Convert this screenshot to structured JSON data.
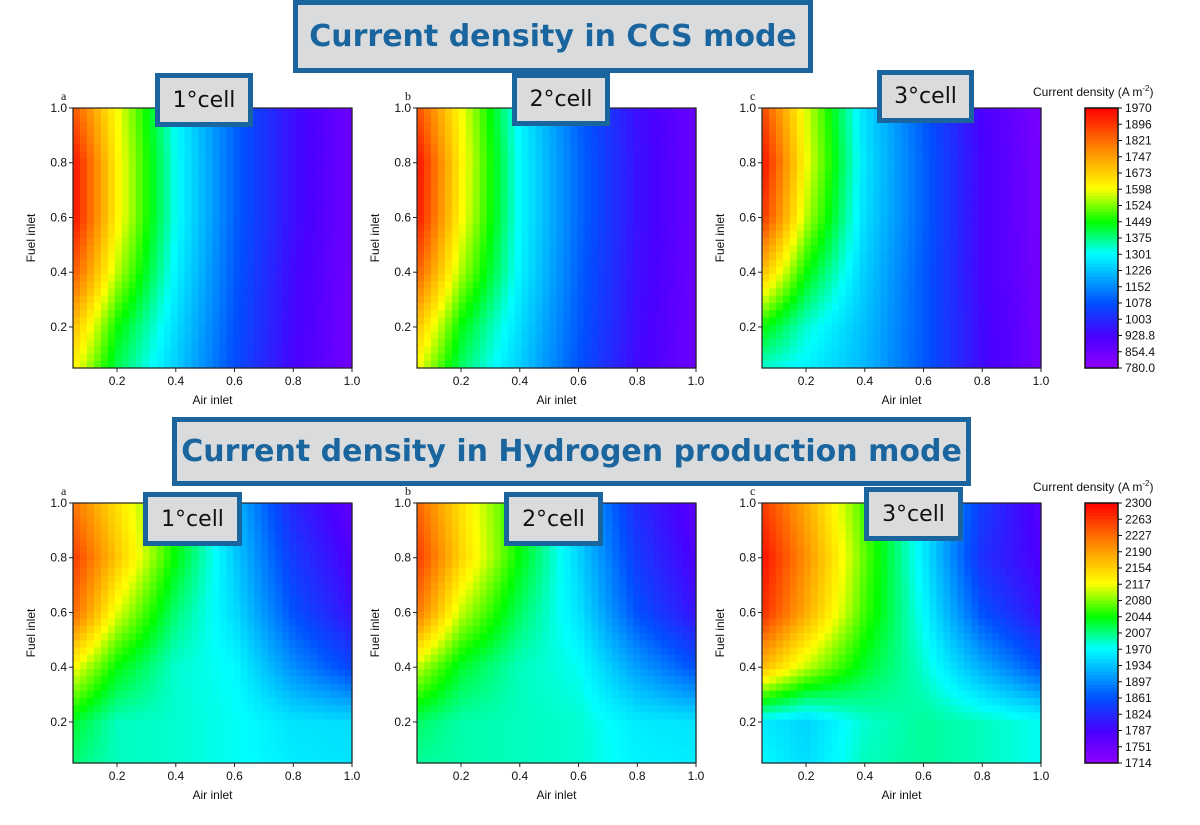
{
  "titles": {
    "top": "Current density in CCS mode",
    "bottom": "Current density in Hydrogen production mode"
  },
  "colormap": [
    "#8f00ff",
    "#4a00ff",
    "#0050ff",
    "#00ffff",
    "#00ff00",
    "#ffff00",
    "#ff8000",
    "#ff0000"
  ],
  "chart_data": [
    {
      "type": "heatmap",
      "group": "CCS mode",
      "panel_letter": "a",
      "cell_label": "1°cell",
      "xlabel": "Air inlet",
      "ylabel": "Fuel inlet",
      "xlim": [
        0.05,
        1.0
      ],
      "ylim": [
        0.05,
        1.0
      ],
      "xticks": [
        "0.2",
        "0.4",
        "0.6",
        "0.8",
        "1.0"
      ],
      "yticks": [
        "0.2",
        "0.4",
        "0.6",
        "0.8",
        "1.0"
      ],
      "x": [
        0.05,
        0.2,
        0.4,
        0.6,
        0.8,
        1.0
      ],
      "y": [
        0.05,
        0.2,
        0.4,
        0.6,
        0.8,
        1.0
      ],
      "z": [
        [
          1620,
          1400,
          1240,
          1070,
          930,
          840
        ],
        [
          1700,
          1450,
          1260,
          1080,
          935,
          840
        ],
        [
          1850,
          1560,
          1290,
          1090,
          940,
          845
        ],
        [
          1950,
          1620,
          1310,
          1100,
          950,
          850
        ],
        [
          1950,
          1620,
          1310,
          1100,
          950,
          850
        ],
        [
          1850,
          1600,
          1300,
          1100,
          950,
          850
        ]
      ],
      "zlim": [
        780.0,
        1970
      ]
    },
    {
      "type": "heatmap",
      "group": "CCS mode",
      "panel_letter": "b",
      "cell_label": "2°cell",
      "xlabel": "Air inlet",
      "ylabel": "Fuel inlet",
      "xlim": [
        0.05,
        1.0
      ],
      "ylim": [
        0.05,
        1.0
      ],
      "xticks": [
        "0.2",
        "0.4",
        "0.6",
        "0.8",
        "1.0"
      ],
      "yticks": [
        "0.2",
        "0.4",
        "0.6",
        "0.8",
        "1.0"
      ],
      "x": [
        0.05,
        0.2,
        0.4,
        0.6,
        0.8,
        1.0
      ],
      "y": [
        0.05,
        0.2,
        0.4,
        0.6,
        0.8,
        1.0
      ],
      "z": [
        [
          1600,
          1390,
          1240,
          1080,
          940,
          850
        ],
        [
          1690,
          1440,
          1260,
          1090,
          945,
          850
        ],
        [
          1840,
          1550,
          1290,
          1100,
          950,
          855
        ],
        [
          1940,
          1610,
          1300,
          1110,
          955,
          860
        ],
        [
          1950,
          1620,
          1300,
          1110,
          955,
          860
        ],
        [
          1860,
          1600,
          1290,
          1100,
          950,
          855
        ]
      ],
      "zlim": [
        780.0,
        1970
      ]
    },
    {
      "type": "heatmap",
      "group": "CCS mode",
      "panel_letter": "c",
      "cell_label": "3°cell",
      "xlabel": "Air inlet",
      "ylabel": "Fuel inlet",
      "xlim": [
        0.05,
        1.0
      ],
      "ylim": [
        0.05,
        1.0
      ],
      "xticks": [
        "0.2",
        "0.4",
        "0.6",
        "0.8",
        "1.0"
      ],
      "yticks": [
        "0.2",
        "0.4",
        "0.6",
        "0.8",
        "1.0"
      ],
      "x": [
        0.05,
        0.2,
        0.4,
        0.6,
        0.8,
        1.0
      ],
      "y": [
        0.05,
        0.2,
        0.4,
        0.6,
        0.8,
        1.0
      ],
      "z": [
        [
          1330,
          1290,
          1210,
          1090,
          940,
          840
        ],
        [
          1450,
          1330,
          1220,
          1090,
          940,
          840
        ],
        [
          1700,
          1450,
          1240,
          1090,
          930,
          835
        ],
        [
          1900,
          1560,
          1260,
          1100,
          930,
          830
        ],
        [
          1950,
          1600,
          1270,
          1100,
          930,
          830
        ],
        [
          1870,
          1580,
          1260,
          1090,
          920,
          820
        ]
      ],
      "zlim": [
        780.0,
        1970
      ]
    },
    {
      "type": "heatmap",
      "group": "Hydrogen production mode",
      "panel_letter": "a",
      "cell_label": "1°cell",
      "xlabel": "Air inlet",
      "ylabel": "Fuel inlet",
      "xlim": [
        0.05,
        1.0
      ],
      "ylim": [
        0.05,
        1.0
      ],
      "xticks": [
        "0.2",
        "0.4",
        "0.6",
        "0.8",
        "1.0"
      ],
      "yticks": [
        "0.2",
        "0.4",
        "0.6",
        "0.8",
        "1.0"
      ],
      "x": [
        0.05,
        0.2,
        0.4,
        0.6,
        0.8,
        1.0
      ],
      "y": [
        0.05,
        0.2,
        0.4,
        0.6,
        0.8,
        1.0
      ],
      "z": [
        [
          2010,
          1990,
          1985,
          1975,
          1960,
          1955
        ],
        [
          2030,
          1990,
          1985,
          1975,
          1955,
          1950
        ],
        [
          2120,
          2040,
          1985,
          1970,
          1900,
          1850
        ],
        [
          2230,
          2110,
          2010,
          1950,
          1860,
          1800
        ],
        [
          2260,
          2160,
          2040,
          1940,
          1840,
          1780
        ],
        [
          2220,
          2140,
          2040,
          1930,
          1820,
          1760
        ]
      ],
      "zlim": [
        1714,
        2300
      ]
    },
    {
      "type": "heatmap",
      "group": "Hydrogen production mode",
      "panel_letter": "b",
      "cell_label": "2°cell",
      "xlabel": "Air inlet",
      "ylabel": "Fuel inlet",
      "xlim": [
        0.05,
        1.0
      ],
      "ylim": [
        0.05,
        1.0
      ],
      "xticks": [
        "0.2",
        "0.4",
        "0.6",
        "0.8",
        "1.0"
      ],
      "yticks": [
        "0.2",
        "0.4",
        "0.6",
        "0.8",
        "1.0"
      ],
      "x": [
        0.05,
        0.2,
        0.4,
        0.6,
        0.8,
        1.0
      ],
      "y": [
        0.05,
        0.2,
        0.4,
        0.6,
        0.8,
        1.0
      ],
      "z": [
        [
          2000,
          1995,
          1990,
          1985,
          1965,
          1960
        ],
        [
          2015,
          1995,
          1990,
          1985,
          1960,
          1955
        ],
        [
          2100,
          2030,
          1990,
          1975,
          1910,
          1860
        ],
        [
          2220,
          2100,
          2015,
          1955,
          1860,
          1800
        ],
        [
          2260,
          2150,
          2040,
          1945,
          1840,
          1780
        ],
        [
          2230,
          2140,
          2040,
          1935,
          1825,
          1765
        ]
      ],
      "zlim": [
        1714,
        2300
      ]
    },
    {
      "type": "heatmap",
      "group": "Hydrogen production mode",
      "panel_letter": "c",
      "cell_label": "3°cell",
      "xlabel": "Air inlet",
      "ylabel": "Fuel inlet",
      "xlim": [
        0.05,
        1.0
      ],
      "ylim": [
        0.05,
        1.0
      ],
      "xticks": [
        "0.2",
        "0.4",
        "0.6",
        "0.8",
        "1.0"
      ],
      "yticks": [
        "0.2",
        "0.4",
        "0.6",
        "0.8",
        "1.0"
      ],
      "x": [
        0.05,
        0.2,
        0.4,
        0.6,
        0.8,
        1.0
      ],
      "y": [
        0.05,
        0.2,
        0.4,
        0.6,
        0.8,
        1.0
      ],
      "z": [
        [
          1970,
          1950,
          1990,
          2000,
          1990,
          1975
        ],
        [
          1960,
          1945,
          1985,
          2000,
          1990,
          1975
        ],
        [
          2170,
          2100,
          2030,
          1985,
          1920,
          1860
        ],
        [
          2270,
          2180,
          2060,
          1970,
          1860,
          1800
        ],
        [
          2290,
          2200,
          2070,
          1960,
          1830,
          1780
        ],
        [
          2260,
          2180,
          2060,
          1960,
          1840,
          1770
        ]
      ],
      "zlim": [
        1714,
        2300
      ]
    }
  ],
  "colorbars": [
    {
      "title": "Current density (A m",
      "sup": "-2",
      "close": ")",
      "ticks": [
        "1970",
        "1896",
        "1821",
        "1747",
        "1673",
        "1598",
        "1524",
        "1449",
        "1375",
        "1301",
        "1226",
        "1152",
        "1078",
        "1003",
        "928.8",
        "854.4",
        "780.0"
      ]
    },
    {
      "title": "Current density (A m",
      "sup": "-2",
      "close": ")",
      "ticks": [
        "2300",
        "2263",
        "2227",
        "2190",
        "2154",
        "2117",
        "2080",
        "2044",
        "2007",
        "1970",
        "1934",
        "1897",
        "1861",
        "1824",
        "1787",
        "1751",
        "1714"
      ]
    }
  ]
}
